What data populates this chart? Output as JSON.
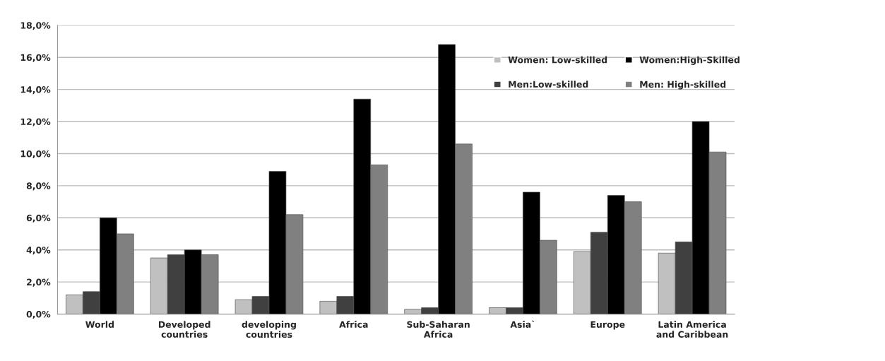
{
  "chart_data": {
    "type": "bar",
    "categories": [
      "World",
      "Developed\ncountries",
      "developing\ncountries",
      "Africa",
      "Sub-Saharan\nAfrica",
      "Asia`",
      "Europe",
      "Latin America\nand Caribbean"
    ],
    "series": [
      {
        "name": "Women: Low-skilled",
        "color": "#c0c0c0",
        "values": [
          1.2,
          3.5,
          0.9,
          0.8,
          0.3,
          0.4,
          3.9,
          3.8
        ]
      },
      {
        "name": "Men:Low-skilled",
        "color": "#404040",
        "values": [
          1.4,
          3.7,
          1.1,
          1.1,
          0.4,
          0.4,
          5.1,
          4.5
        ]
      },
      {
        "name": "Women:High-Skilled",
        "color": "#000000",
        "values": [
          6.0,
          4.0,
          8.9,
          13.4,
          16.8,
          7.6,
          7.4,
          12.0
        ]
      },
      {
        "name": "Men: High-skilled",
        "color": "#808080",
        "values": [
          5.0,
          3.7,
          6.2,
          9.3,
          10.6,
          4.6,
          7.0,
          10.1
        ]
      }
    ],
    "ylim": [
      0,
      18
    ],
    "yticks": [
      {
        "value": 0,
        "label": "0,0%"
      },
      {
        "value": 2,
        "label": "2,0%"
      },
      {
        "value": 4,
        "label": "4,0%"
      },
      {
        "value": 6,
        "label": "6,0%"
      },
      {
        "value": 8,
        "label": "8,0%"
      },
      {
        "value": 10,
        "label": "10,0%"
      },
      {
        "value": 12,
        "label": "12,0%"
      },
      {
        "value": 14,
        "label": "14,0%"
      },
      {
        "value": 16,
        "label": "16,0%"
      },
      {
        "value": 18,
        "label": "18,0%"
      }
    ],
    "grid": "y",
    "legend": "top right"
  }
}
